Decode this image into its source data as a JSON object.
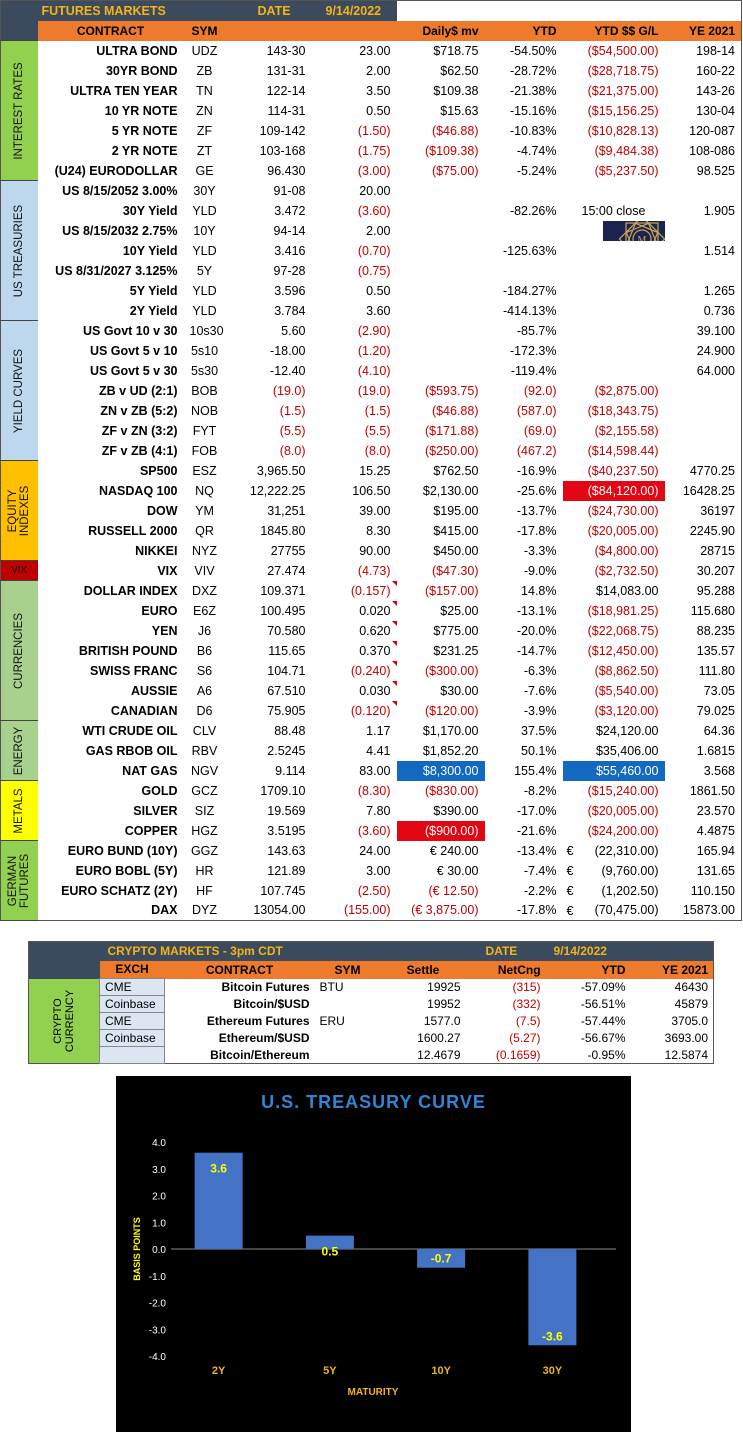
{
  "futures": {
    "title": "FUTURES MARKETS",
    "date_label": "DATE",
    "date": "9/14/2022",
    "headers": {
      "contract": "CONTRACT",
      "sym": "SYM",
      "daily": "Daily$ mv",
      "ytd": "YTD",
      "ytd_gl": "YTD $$ G/L",
      "ye": "YE 2021"
    },
    "sections": {
      "ir": "INTEREST RATES",
      "ust": "US TREASURIES",
      "yc": "YIELD CURVES",
      "eq": "EQUITY INDEXES",
      "vix": "VIX",
      "cur": "CURRENCIES",
      "en": "ENERGY",
      "met": "METALS",
      "ger": "GERMAN FUTURES"
    },
    "rows": [
      {
        "name": "ULTRA BOND",
        "sym": "UDZ",
        "price": "143-30",
        "chg": "23.00",
        "daily": "$718.75",
        "ytd": "-54.50%",
        "ytdgl": "($54,500.00)",
        "ye": "198-14"
      },
      {
        "name": "30YR BOND",
        "sym": "ZB",
        "price": "131-31",
        "chg": "2.00",
        "daily": "$62.50",
        "ytd": "-28.72%",
        "ytdgl": "($28,718.75)",
        "ye": "160-22"
      },
      {
        "name": "ULTRA TEN YEAR",
        "sym": "TN",
        "price": "122-14",
        "chg": "3.50",
        "daily": "$109.38",
        "ytd": "-21.38%",
        "ytdgl": "($21,375.00)",
        "ye": "143-26"
      },
      {
        "name": "10 YR NOTE",
        "sym": "ZN",
        "price": "114-31",
        "chg": "0.50",
        "daily": "$15.63",
        "ytd": "-15.16%",
        "ytdgl": "($15,156.25)",
        "ye": "130-04"
      },
      {
        "name": "5 YR NOTE",
        "sym": "ZF",
        "price": "109-142",
        "chg": "(1.50)",
        "daily": "($46.88)",
        "ytd": "-10.83%",
        "ytdgl": "($10,828.13)",
        "ye": "120-087"
      },
      {
        "name": "2 YR NOTE",
        "sym": "ZT",
        "price": "103-168",
        "chg": "(1.75)",
        "daily": "($109.38)",
        "ytd": "-4.74%",
        "ytdgl": "($9,484.38)",
        "ye": "108-086"
      },
      {
        "name": "(U24) EURODOLLAR",
        "sym": "GE",
        "price": "96.430",
        "chg": "(3.00)",
        "daily": "($75.00)",
        "ytd": "-5.24%",
        "ytdgl": "($5,237.50)",
        "ye": "98.525"
      },
      {
        "name": "US 8/15/2052 3.00%",
        "sym": "30Y",
        "price": "91-08",
        "chg": "20.00",
        "daily": "",
        "ytd": "",
        "ytdgl": "",
        "ye": ""
      },
      {
        "name": "30Y Yield",
        "sym": "YLD",
        "price": "3.472",
        "chg": "(3.60)",
        "daily": "",
        "ytd": "-82.26%",
        "ytdgl": "15:00 close",
        "ye": "1.905"
      },
      {
        "name": "US 8/15/2032 2.75%",
        "sym": "10Y",
        "price": "94-14",
        "chg": "2.00",
        "daily": "",
        "ytd": "",
        "ytdgl": "",
        "ye": ""
      },
      {
        "name": "10Y Yield",
        "sym": "YLD",
        "price": "3.416",
        "chg": "(0.70)",
        "daily": "",
        "ytd": "-125.63%",
        "ytdgl": "",
        "ye": "1.514"
      },
      {
        "name": "US 8/31/2027 3.125%",
        "sym": "5Y",
        "price": "97-28",
        "chg": "(0.75)",
        "daily": "",
        "ytd": "",
        "ytdgl": "",
        "ye": ""
      },
      {
        "name": "5Y Yield",
        "sym": "YLD",
        "price": "3.596",
        "chg": "0.50",
        "daily": "",
        "ytd": "-184.27%",
        "ytdgl": "",
        "ye": "1.265"
      },
      {
        "name": "2Y Yield",
        "sym": "YLD",
        "price": "3.784",
        "chg": "3.60",
        "daily": "",
        "ytd": "-414.13%",
        "ytdgl": "",
        "ye": "0.736"
      },
      {
        "name": "US Govt 10 v 30",
        "sym": "10s30",
        "price": "5.60",
        "chg": "(2.90)",
        "daily": "",
        "ytd": "-85.7%",
        "ytdgl": "",
        "ye": "39.100"
      },
      {
        "name": "US Govt 5 v 10",
        "sym": "5s10",
        "price": "-18.00",
        "chg": "(1.20)",
        "daily": "",
        "ytd": "-172.3%",
        "ytdgl": "",
        "ye": "24.900"
      },
      {
        "name": "US Govt 5 v 30",
        "sym": "5s30",
        "price": "-12.40",
        "chg": "(4.10)",
        "daily": "",
        "ytd": "-119.4%",
        "ytdgl": "",
        "ye": "64.000"
      },
      {
        "name": "ZB v UD (2:1)",
        "sym": "BOB",
        "price": "(19.0)",
        "chg": "(19.0)",
        "daily": "($593.75)",
        "ytd": "(92.0)",
        "ytdgl": "($2,875.00)",
        "ye": ""
      },
      {
        "name": "ZN v ZB (5:2)",
        "sym": "NOB",
        "price": "(1.5)",
        "chg": "(1.5)",
        "daily": "($46.88)",
        "ytd": "(587.0)",
        "ytdgl": "($18,343.75)",
        "ye": ""
      },
      {
        "name": "ZF v ZN (3:2)",
        "sym": "FYT",
        "price": "(5.5)",
        "chg": "(5.5)",
        "daily": "($171.88)",
        "ytd": "(69.0)",
        "ytdgl": "($2,155.58)",
        "ye": ""
      },
      {
        "name": "ZF v ZB (4:1)",
        "sym": "FOB",
        "price": "(8.0)",
        "chg": "(8.0)",
        "daily": "($250.00)",
        "ytd": "(467.2)",
        "ytdgl": "($14,598.44)",
        "ye": ""
      },
      {
        "name": "SP500",
        "sym": "ESZ",
        "price": "3,965.50",
        "chg": "15.25",
        "daily": "$762.50",
        "ytd": "-16.9%",
        "ytdgl": "($40,237.50)",
        "ye": "4770.25"
      },
      {
        "name": "NASDAQ 100",
        "sym": "NQ",
        "price": "12,222.25",
        "chg": "106.50",
        "daily": "$2,130.00",
        "ytd": "-25.6%",
        "ytdgl": "($84,120.00)",
        "ye": "16428.25"
      },
      {
        "name": "DOW",
        "sym": "YM",
        "price": "31,251",
        "chg": "39.00",
        "daily": "$195.00",
        "ytd": "-13.7%",
        "ytdgl": "($24,730.00)",
        "ye": "36197"
      },
      {
        "name": "RUSSELL 2000",
        "sym": "QR",
        "price": "1845.80",
        "chg": "8.30",
        "daily": "$415.00",
        "ytd": "-17.8%",
        "ytdgl": "($20,005.00)",
        "ye": "2245.90"
      },
      {
        "name": "NIKKEI",
        "sym": "NYZ",
        "price": "27755",
        "chg": "90.00",
        "daily": "$450.00",
        "ytd": "-3.3%",
        "ytdgl": "($4,800.00)",
        "ye": "28715"
      },
      {
        "name": "VIX",
        "sym": "VIV",
        "price": "27.474",
        "chg": "(4.73)",
        "daily": "($47.30)",
        "ytd": "-9.0%",
        "ytdgl": "($2,732.50)",
        "ye": "30.207"
      },
      {
        "name": "DOLLAR INDEX",
        "sym": "DXZ",
        "price": "109.371",
        "chg": "(0.157)",
        "daily": "($157.00)",
        "ytd": "14.8%",
        "ytdgl": "$14,083.00",
        "ye": "95.288"
      },
      {
        "name": "EURO",
        "sym": "E6Z",
        "price": "100.495",
        "chg": "0.020",
        "daily": "$25.00",
        "ytd": "-13.1%",
        "ytdgl": "($18,981.25)",
        "ye": "115.680"
      },
      {
        "name": "YEN",
        "sym": "J6",
        "price": "70.580",
        "chg": "0.620",
        "daily": "$775.00",
        "ytd": "-20.0%",
        "ytdgl": "($22,068.75)",
        "ye": "88.235"
      },
      {
        "name": "BRITISH POUND",
        "sym": "B6",
        "price": "115.65",
        "chg": "0.370",
        "daily": "$231.25",
        "ytd": "-14.7%",
        "ytdgl": "($12,450.00)",
        "ye": "135.57"
      },
      {
        "name": "SWISS FRANC",
        "sym": "S6",
        "price": "104.71",
        "chg": "(0.240)",
        "daily": "($300.00)",
        "ytd": "-6.3%",
        "ytdgl": "($8,862.50)",
        "ye": "111.80"
      },
      {
        "name": "AUSSIE",
        "sym": "A6",
        "price": "67.510",
        "chg": "0.030",
        "daily": "$30.00",
        "ytd": "-7.6%",
        "ytdgl": "($5,540.00)",
        "ye": "73.05"
      },
      {
        "name": "CANADIAN",
        "sym": "D6",
        "price": "75.905",
        "chg": "(0.120)",
        "daily": "($120.00)",
        "ytd": "-3.9%",
        "ytdgl": "($3,120.00)",
        "ye": "79.025"
      },
      {
        "name": "WTI CRUDE OIL",
        "sym": "CLV",
        "price": "88.48",
        "chg": "1.17",
        "daily": "$1,170.00",
        "ytd": "37.5%",
        "ytdgl": "$24,120.00",
        "ye": "64.36"
      },
      {
        "name": "GAS RBOB OIL",
        "sym": "RBV",
        "price": "2.5245",
        "chg": "4.41",
        "daily": "$1,852.20",
        "ytd": "50.1%",
        "ytdgl": "$35,406.00",
        "ye": "1.6815"
      },
      {
        "name": "NAT GAS",
        "sym": "NGV",
        "price": "9.114",
        "chg": "83.00",
        "daily": "$8,300.00",
        "ytd": "155.4%",
        "ytdgl": "$55,460.00",
        "ye": "3.568"
      },
      {
        "name": "GOLD",
        "sym": "GCZ",
        "price": "1709.10",
        "chg": "(8.30)",
        "daily": "($830.00)",
        "ytd": "-8.2%",
        "ytdgl": "($15,240.00)",
        "ye": "1861.50"
      },
      {
        "name": "SILVER",
        "sym": "SIZ",
        "price": "19.569",
        "chg": "7.80",
        "daily": "$390.00",
        "ytd": "-17.0%",
        "ytdgl": "($20,005.00)",
        "ye": "23.570"
      },
      {
        "name": "COPPER",
        "sym": "HGZ",
        "price": "3.5195",
        "chg": "(3.60)",
        "daily": "($900.00)",
        "ytd": "-21.6%",
        "ytdgl": "($24,200.00)",
        "ye": "4.4875"
      },
      {
        "name": "EURO BUND (10Y)",
        "sym": "GGZ",
        "price": "143.63",
        "chg": "24.00",
        "daily": "€ 240.00",
        "ytd": "-13.4%",
        "ytdgl": "(22,310.00)",
        "ye": "165.94"
      },
      {
        "name": "EURO BOBL (5Y)",
        "sym": "HR",
        "price": "121.89",
        "chg": "3.00",
        "daily": "€ 30.00",
        "ytd": "-7.4%",
        "ytdgl": "(9,760.00)",
        "ye": "131.65"
      },
      {
        "name": "EURO SCHATZ (2Y)",
        "sym": "HF",
        "price": "107.745",
        "chg": "(2.50)",
        "daily": "(€ 12.50)",
        "ytd": "-2.2%",
        "ytdgl": "(1,202.50)",
        "ye": "110.150"
      },
      {
        "name": "DAX",
        "sym": "DYZ",
        "price": "13054.00",
        "chg": "(155.00)",
        "daily": "(€ 3,875.00)",
        "ytd": "-17.8%",
        "ytdgl": "(70,475.00)",
        "ye": "15873.00"
      }
    ],
    "euro_sign": "€",
    "logo_text": "MAGNELIBRA"
  },
  "crypto": {
    "title": "CRYPTO MARKETS - 3pm CDT",
    "date_label": "DATE",
    "date": "9/14/2022",
    "section": "CRYPTO CURRENCY",
    "headers": {
      "exch": "EXCH",
      "contract": "CONTRACT",
      "sym": "SYM",
      "settle": "Settle",
      "netchg": "NetCng",
      "ytd": "YTD",
      "ye": "YE 2021"
    },
    "rows": [
      {
        "exch": "CME",
        "contract": "Bitcoin Futures",
        "sym": "BTU",
        "settle": "19925",
        "netchg": "(315)",
        "ytd": "-57.09%",
        "ye": "46430"
      },
      {
        "exch": "Coinbase",
        "contract": "Bitcoin/$USD",
        "sym": "",
        "settle": "19952",
        "netchg": "(332)",
        "ytd": "-56.51%",
        "ye": "45879"
      },
      {
        "exch": "CME",
        "contract": "Ethereum Futures",
        "sym": "ERU",
        "settle": "1577.0",
        "netchg": "(7.5)",
        "ytd": "-57.44%",
        "ye": "3705.0"
      },
      {
        "exch": "Coinbase",
        "contract": "Ethereum/$USD",
        "sym": "",
        "settle": "1600.27",
        "netchg": "(5.27)",
        "ytd": "-56.67%",
        "ye": "3693.00"
      },
      {
        "exch": "",
        "contract": "Bitcoin/Ethereum",
        "sym": "",
        "settle": "12.4679",
        "netchg": "(0.1659)",
        "ytd": "-0.95%",
        "ye": "12.5874"
      }
    ]
  },
  "chart_data": {
    "type": "bar",
    "title": "U.S. TREASURY CURVE",
    "xlabel": "MATURITY",
    "ylabel": "BASIS POINTS",
    "categories": [
      "2Y",
      "5Y",
      "10Y",
      "30Y"
    ],
    "values": [
      3.6,
      0.5,
      -0.7,
      -3.6
    ],
    "data_labels": [
      "3.6",
      "0.5",
      "-0.7",
      "-3.6"
    ],
    "ylim": [
      -4.0,
      4.0
    ],
    "yticks": [
      "4.0",
      "3.0",
      "2.0",
      "1.0",
      "0.0",
      "-1.0",
      "-2.0",
      "-3.0",
      "-4.0"
    ],
    "grid": false,
    "colors": {
      "bar": "#4472c4",
      "background": "#000000",
      "title": "#2f86d6",
      "labels": "#f5b31a",
      "data_label": "#ffff00",
      "axis": "#ffffff"
    }
  }
}
